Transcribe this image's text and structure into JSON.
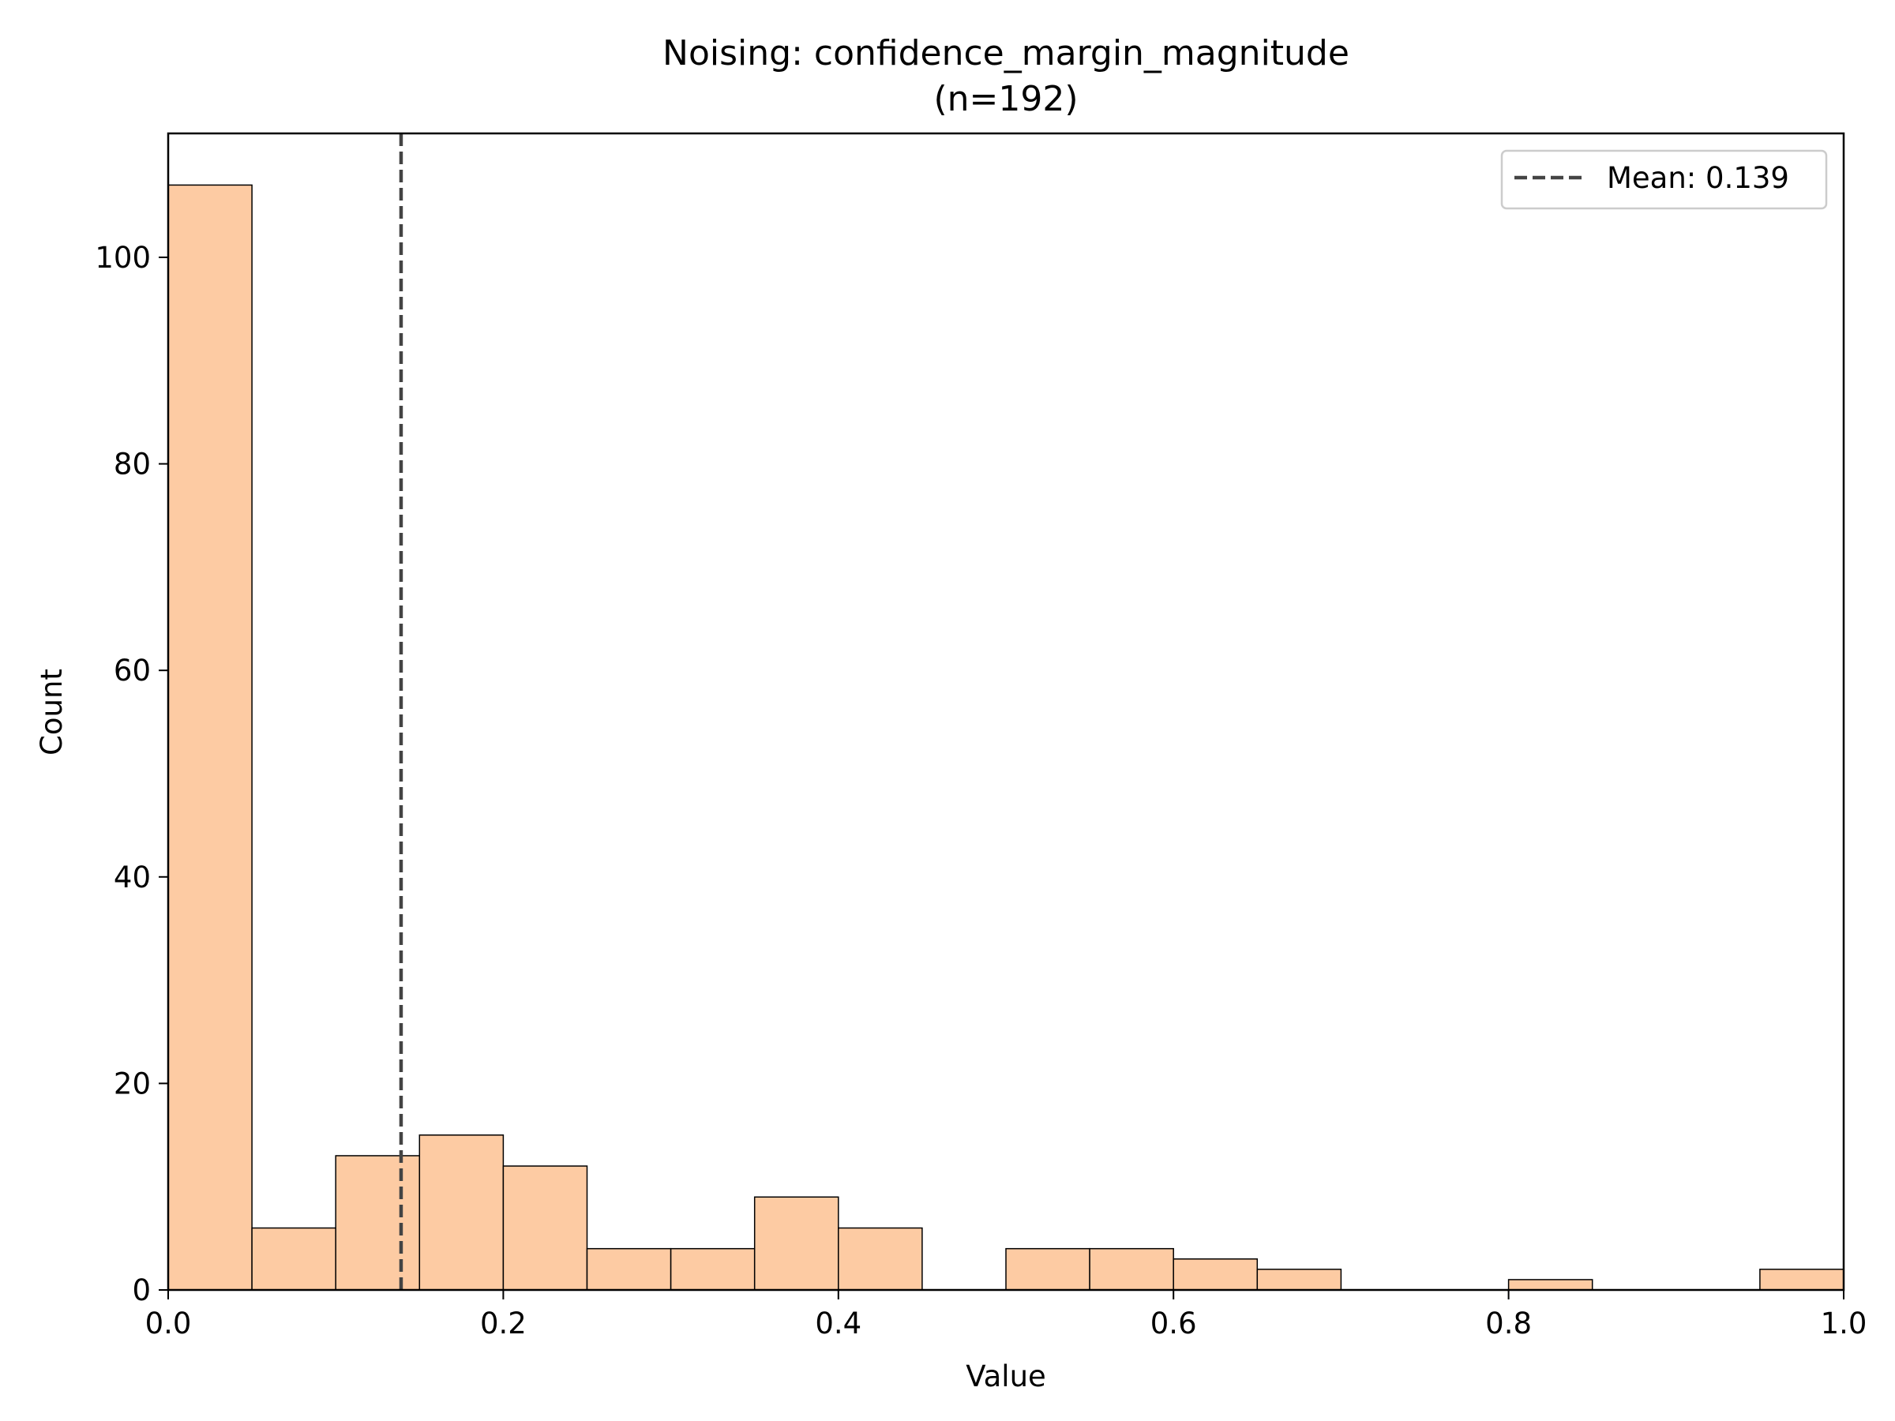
{
  "chart_data": {
    "type": "bar",
    "title": "Noising: confidence_margin_magnitude",
    "subtitle": "(n=192)",
    "xlabel": "Value",
    "ylabel": "Count",
    "xlim": [
      0.0,
      1.0
    ],
    "ylim": [
      0,
      112
    ],
    "bin_edges": [
      0.0,
      0.05,
      0.1,
      0.15,
      0.2,
      0.25,
      0.3,
      0.35,
      0.4,
      0.45,
      0.5,
      0.55,
      0.6,
      0.65,
      0.7,
      0.75,
      0.8,
      0.85,
      0.9,
      0.95,
      1.0
    ],
    "values": [
      107,
      6,
      13,
      15,
      12,
      4,
      4,
      9,
      6,
      0,
      4,
      4,
      3,
      2,
      0,
      0,
      1,
      0,
      0,
      2
    ],
    "x_ticks": [
      0.0,
      0.2,
      0.4,
      0.6,
      0.8,
      1.0
    ],
    "x_tick_labels": [
      "0.0",
      "0.2",
      "0.4",
      "0.6",
      "0.8",
      "1.0"
    ],
    "y_ticks": [
      0,
      20,
      40,
      60,
      80,
      100
    ],
    "y_tick_labels": [
      "0",
      "20",
      "40",
      "60",
      "80",
      "100"
    ],
    "mean_line": {
      "value": 0.139,
      "label": "Mean: 0.139",
      "style": "dashed",
      "color": "#444444"
    },
    "legend": {
      "position": "top-right",
      "entries": [
        "Mean: 0.139"
      ]
    },
    "bar_color": "#fdcba3",
    "bar_edge_color": "#000000",
    "grid": false
  }
}
